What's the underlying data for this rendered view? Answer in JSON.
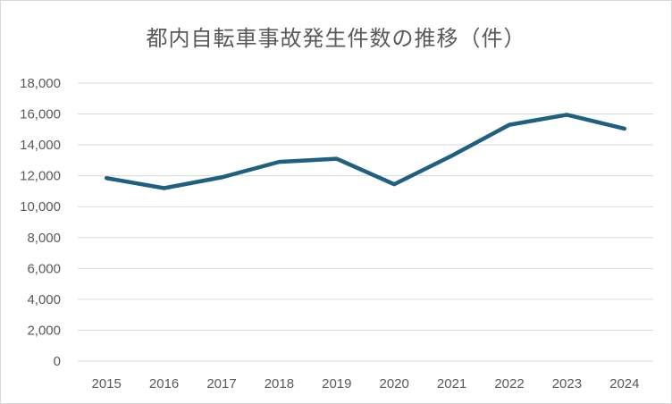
{
  "chart_data": {
    "type": "line",
    "title": "都内自転車事故発生件数の推移（件）",
    "xlabel": "",
    "ylabel": "",
    "categories": [
      "2015",
      "2016",
      "2017",
      "2018",
      "2019",
      "2020",
      "2021",
      "2022",
      "2023",
      "2024"
    ],
    "series": [
      {
        "values": [
          11850,
          11200,
          11900,
          12900,
          13100,
          11450,
          13300,
          15300,
          15950,
          15050
        ],
        "color": "#1f5f7f"
      }
    ],
    "ylim": [
      0,
      18000
    ],
    "yticks": [
      "0",
      "2,000",
      "4,000",
      "6,000",
      "8,000",
      "10,000",
      "12,000",
      "14,000",
      "16,000",
      "18,000"
    ],
    "ytick_values": [
      0,
      2000,
      4000,
      6000,
      8000,
      10000,
      12000,
      14000,
      16000,
      18000
    ],
    "grid": true,
    "legend": "none",
    "colors": {
      "line": "#1f5f7f",
      "grid": "#d9d9d9",
      "text": "#595959"
    }
  }
}
